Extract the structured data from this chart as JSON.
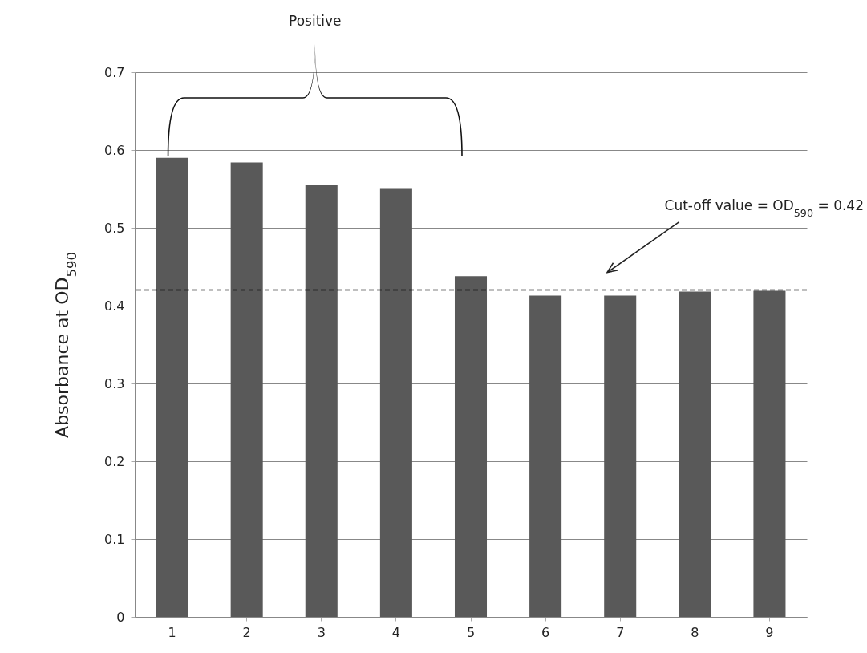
{
  "chart_data": {
    "type": "bar",
    "ylabel": "Absorbance at OD$_{590}$",
    "categories": [
      "1",
      "2",
      "3",
      "4",
      "5",
      "6",
      "7",
      "8",
      "9"
    ],
    "values": [
      0.59,
      0.584,
      0.555,
      0.551,
      0.438,
      0.413,
      0.413,
      0.418,
      0.419
    ],
    "color": "#595959",
    "ylim": [
      0,
      0.7
    ],
    "yticks": [
      0,
      0.1,
      0.2,
      0.3,
      0.4,
      0.5,
      0.6,
      0.7
    ],
    "grid": "y",
    "ref_lines": [
      {
        "axis": "y",
        "value": 0.42,
        "label": "Cut-off value = OD$_{590}$ = 0.42",
        "line_style": "dashed",
        "color": "#000000"
      }
    ],
    "annotations": [
      "Positive"
    ]
  }
}
